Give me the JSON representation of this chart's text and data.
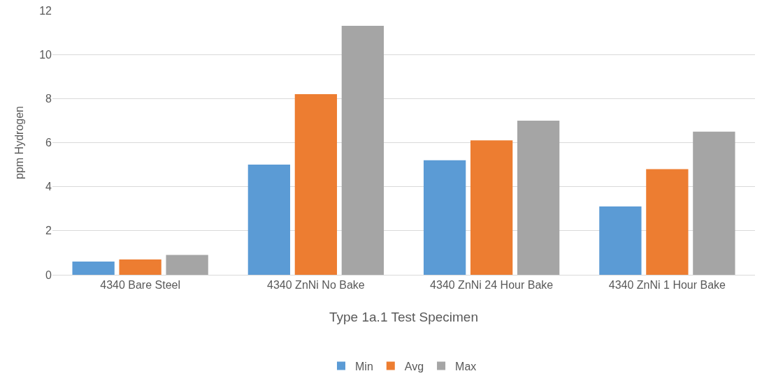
{
  "chart_data": {
    "type": "bar",
    "xlabel": "Type 1a.1 Test Specimen",
    "ylabel": "ppm Hydrogen",
    "categories": [
      "4340 Bare Steel",
      "4340 ZnNi No Bake",
      "4340 ZnNi 24 Hour Bake",
      "4340 ZnNi 1 Hour Bake"
    ],
    "series": [
      {
        "name": "Min",
        "color": "#5b9bd5",
        "values": [
          0.6,
          5.0,
          5.2,
          3.1
        ]
      },
      {
        "name": "Avg",
        "color": "#ed7d31",
        "values": [
          0.7,
          8.2,
          6.1,
          4.8
        ]
      },
      {
        "name": "Max",
        "color": "#a5a5a5",
        "values": [
          0.9,
          11.3,
          7.0,
          6.5
        ]
      }
    ],
    "ylim": [
      0,
      12
    ],
    "yticks": [
      0,
      2,
      4,
      6,
      8,
      10,
      12
    ],
    "grid": "y",
    "legend": "bottom"
  }
}
